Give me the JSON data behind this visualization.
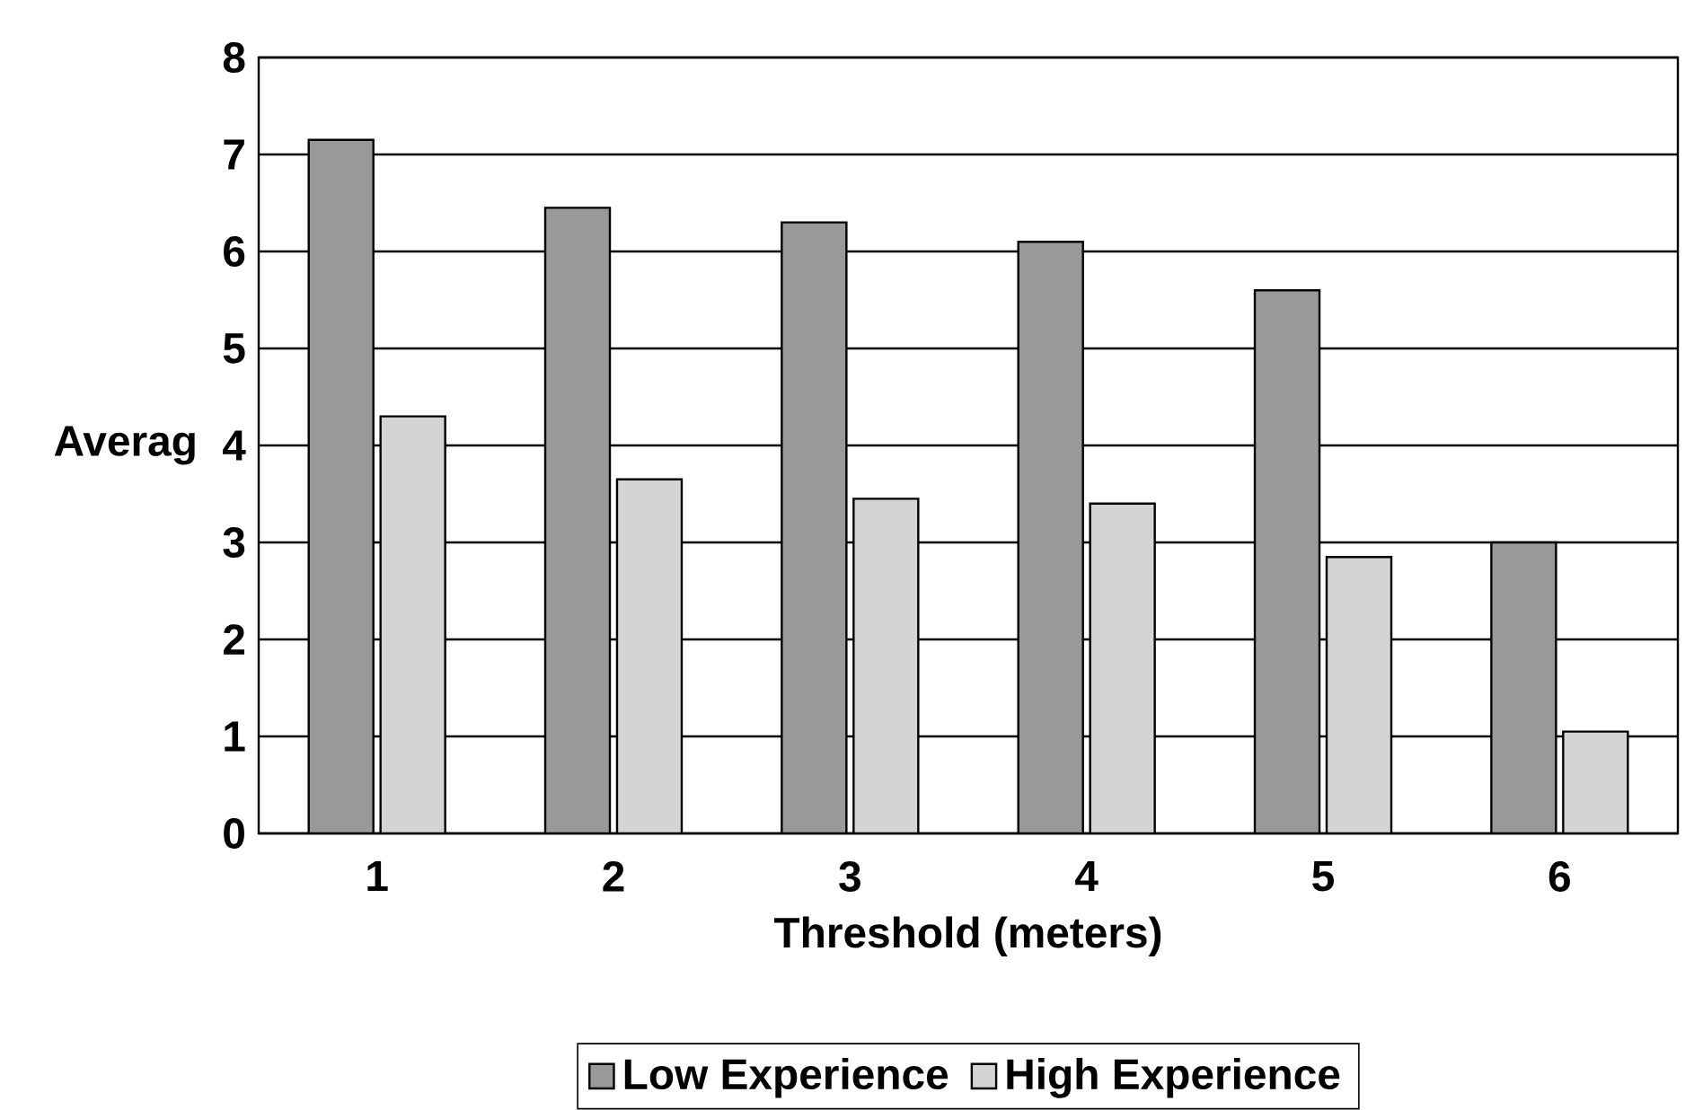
{
  "chart_data": {
    "type": "bar",
    "xlabel": "Threshold (meters)",
    "ylabel": "Averag",
    "categories": [
      "1",
      "2",
      "3",
      "4",
      "5",
      "6"
    ],
    "series": [
      {
        "name": "Low Experience",
        "color": "#999999",
        "values": [
          7.15,
          6.45,
          6.3,
          6.1,
          5.6,
          3.0
        ]
      },
      {
        "name": "High Experience",
        "color": "#d4d4d4",
        "values": [
          4.3,
          3.65,
          3.45,
          3.4,
          2.85,
          1.05
        ]
      }
    ],
    "ylim": [
      0,
      8
    ],
    "yticks": [
      0,
      1,
      2,
      3,
      4,
      5,
      6,
      7,
      8
    ],
    "grid": "y",
    "legend": "bottom"
  }
}
